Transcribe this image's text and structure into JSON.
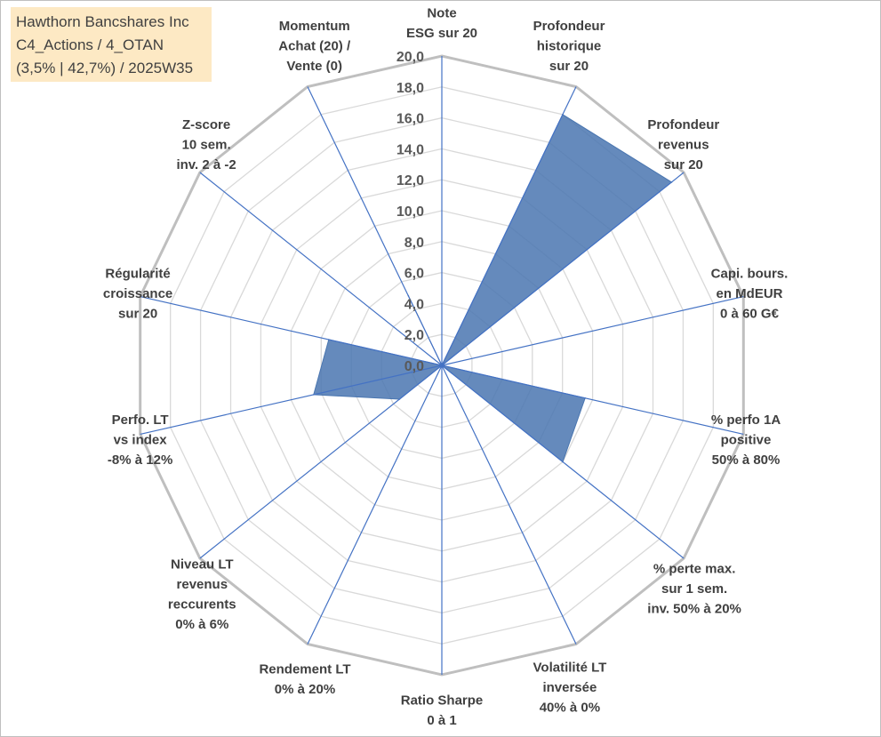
{
  "header": {
    "line1": "Hawthorn Bancshares Inc",
    "line2": "C4_Actions / 4_OTAN",
    "line3": "(3,5% | 42,7%) / 2025W35"
  },
  "colors": {
    "fill": "#4a76b0",
    "axis": "#4472c4",
    "grid_outer": "#bfbfbf",
    "grid_inner": "#d9d9d9",
    "title_bg": "#fde9c4"
  },
  "chart_data": {
    "type": "radar",
    "rmin": 0,
    "rmax": 20,
    "step": 2,
    "tick_labels": [
      "0,0",
      "2,0",
      "4,0",
      "6,0",
      "8,0",
      "10,0",
      "12,0",
      "14,0",
      "16,0",
      "18,0",
      "20,0"
    ],
    "axes": [
      {
        "lines": [
          "Note",
          "ESG sur 20"
        ],
        "value": 0
      },
      {
        "lines": [
          "Profondeur",
          "historique",
          "sur 20"
        ],
        "value": 18
      },
      {
        "lines": [
          "Profondeur",
          "revenus",
          "sur 20"
        ],
        "value": 19
      },
      {
        "lines": [
          "Capi. bours.",
          "en MdEUR",
          "0 à 60 G€"
        ],
        "value": 0
      },
      {
        "lines": [
          "% perfo 1A",
          "positive",
          "50% à 80%"
        ],
        "value": 9.5
      },
      {
        "lines": [
          "% perte max.",
          "sur 1 sem.",
          "inv. 50% à 20%"
        ],
        "value": 10
      },
      {
        "lines": [
          "Volatilité LT",
          "inversée",
          "40% à 0%"
        ],
        "value": 0
      },
      {
        "lines": [
          "Ratio Sharpe",
          "0 à 1"
        ],
        "value": 0
      },
      {
        "lines": [
          "Rendement LT",
          "0% à 20%"
        ],
        "value": 0
      },
      {
        "lines": [
          "Niveau LT",
          "revenus",
          "reccurents",
          "0% à 6%"
        ],
        "value": 3.5
      },
      {
        "lines": [
          "Perfo. LT",
          "vs index",
          "-8% à 12%"
        ],
        "value": 8.5
      },
      {
        "lines": [
          "Régularité",
          "croissance",
          "sur 20"
        ],
        "value": 7.5
      },
      {
        "lines": [
          "Z-score",
          "10 sem.",
          "inv. 2 à -2"
        ],
        "value": 0
      },
      {
        "lines": [
          "Momentum",
          "Achat (20) /",
          "Vente (0)"
        ],
        "value": 5
      }
    ]
  }
}
